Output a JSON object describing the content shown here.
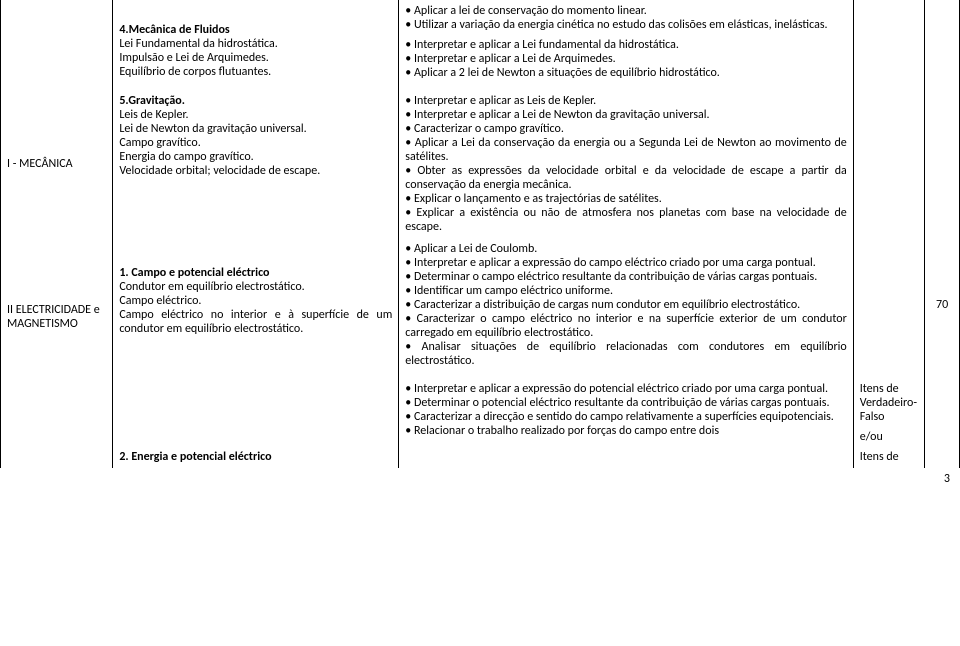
{
  "rows": [
    {
      "module": "",
      "content": {
        "title": "4.Mecânica de Fluidos",
        "lines": [
          "Lei Fundamental da hidrostática.",
          "Impulsão e Lei de Arquimedes.",
          "Equilíbrio de corpos flutuantes."
        ]
      },
      "objectives": [
        "• Aplicar a lei de conservação do momento linear.",
        "• Utilizar a variação da energia cinética no estudo das colisões em elásticas, inelásticas.",
        "",
        "• Interpretar e aplicar a Lei fundamental da hidrostática.",
        "• Interpretar e aplicar a Lei de Arquimedes.",
        "• Aplicar a 2 lei de Newton a situações de equilíbrio hidrostático."
      ],
      "type": "",
      "hours": ""
    },
    {
      "module": "I - MECÂNICA",
      "content": {
        "title": "5.Gravitação.",
        "lines": [
          "Leis de Kepler.",
          "Lei de Newton da gravitação universal.",
          "Campo gravítico.",
          "Energia do campo gravítico.",
          "Velocidade orbital; velocidade de escape."
        ]
      },
      "objectives": [
        "• Interpretar e aplicar as Leis de Kepler.",
        "• Interpretar e aplicar a Lei de Newton da gravitação universal.",
        "• Caracterizar o campo gravítico.",
        "• Aplicar a Lei da conservação da energia ou a Segunda Lei de Newton ao movimento de satélites.",
        "• Obter as expressões da velocidade orbital e da velocidade de escape a partir da conservação da energia mecânica.",
        "• Explicar o lançamento e as trajectórias de satélites.",
        "• Explicar a existência ou não de atmosfera nos planetas com base na velocidade de escape."
      ],
      "type": "",
      "hours": ""
    },
    {
      "module": "II ELECTRICIDADE e MAGNETISMO",
      "content": {
        "title": "1. Campo e potencial eléctrico",
        "lines": [
          "Condutor em equilíbrio electrostático.",
          "Campo eléctrico.",
          "Campo eléctrico no interior e à superfície de um condutor em equilíbrio electrostático."
        ]
      },
      "objectives": [
        "• Aplicar a Lei de Coulomb.",
        "• Interpretar e aplicar a expressão do campo eléctrico criado por uma carga pontual.",
        "• Determinar o campo eléctrico resultante da contribuição de várias cargas pontuais.",
        "• Identificar um campo eléctrico uniforme.",
        "• Caracterizar a distribuição de cargas num condutor em equilíbrio electrostático.",
        "• Caracterizar o campo eléctrico no interior e na superfície exterior de um condutor carregado em equilíbrio electrostático.",
        "• Analisar situações de equilíbrio relacionadas com condutores em equilíbrio electrostático."
      ],
      "type": "",
      "hours": "70"
    },
    {
      "module": "",
      "content": {
        "title": "2. Energia e potencial eléctrico",
        "lines": []
      },
      "objectives": [
        "• Interpretar e aplicar a expressão do potencial eléctrico criado por uma carga pontual.",
        "• Determinar o potencial eléctrico resultante da contribuição de várias cargas pontuais.",
        "• Caracterizar a direcção e sentido do campo relativamente a superfícies equipotenciais.",
        "• Relacionar o trabalho realizado por forças do campo entre dois"
      ],
      "type_lines": [
        "Itens de",
        "Verdadeiro-",
        "Falso",
        "",
        "e/ou",
        "",
        "Itens de"
      ],
      "hours": ""
    }
  ],
  "pageNumber": "3"
}
